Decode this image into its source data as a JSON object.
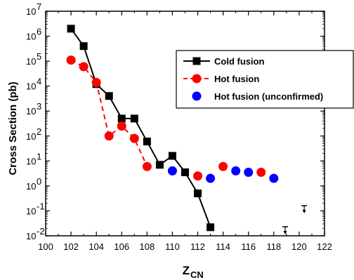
{
  "chart_data": {
    "type": "scatter",
    "xlabel": "Z",
    "xlabel_sub": "CN",
    "ylabel": "Cross Section (pb)",
    "xlim": [
      100,
      122
    ],
    "ylim_log10": [
      -2,
      7
    ],
    "y_scale": "log",
    "x_ticks": [
      "100",
      "102",
      "104",
      "106",
      "108",
      "110",
      "112",
      "114",
      "116",
      "118",
      "120",
      "122"
    ],
    "y_tick_bases": [
      "10",
      "10",
      "10",
      "10",
      "10",
      "10",
      "10",
      "10",
      "10",
      "10"
    ],
    "y_tick_exps": [
      "-2",
      "-1",
      "0",
      "1",
      "2",
      "3",
      "4",
      "5",
      "6",
      "7"
    ],
    "legend_position": "top-right",
    "series": [
      {
        "name": "Cold fusion",
        "color": "#000000",
        "marker": "square",
        "line": "solid",
        "x": [
          102,
          103,
          104,
          105,
          106,
          107,
          108,
          109,
          110,
          111,
          112,
          113
        ],
        "y": [
          2000000,
          400000,
          12000,
          4000,
          500,
          500,
          60,
          7,
          16,
          3.5,
          0.5,
          0.022
        ]
      },
      {
        "name": "Hot fusion",
        "color": "#ff0000",
        "marker": "circle",
        "line": "dashed",
        "x": [
          102,
          103,
          104,
          105,
          106,
          107,
          108,
          112,
          114,
          117
        ],
        "y": [
          110000,
          60000,
          14000,
          100,
          250,
          80,
          6,
          2.5,
          6,
          3.5
        ],
        "connected_count": 7
      },
      {
        "name": "Hot fusion (unconfirmed)",
        "color": "#0000ff",
        "marker": "circle",
        "line": "none",
        "x": [
          110,
          113,
          115,
          116,
          118
        ],
        "y": [
          4,
          2,
          4,
          3.5,
          2
        ]
      }
    ],
    "upper_limits": [
      {
        "x": 118.9,
        "y": 0.023
      },
      {
        "x": 120.4,
        "y": 0.16
      }
    ]
  }
}
